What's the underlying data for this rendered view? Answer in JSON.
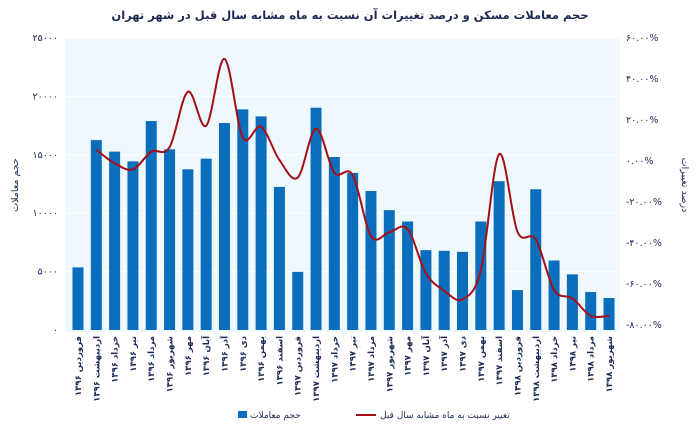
{
  "chart_data": {
    "type": "bar+line",
    "title": "حجم معاملات مسکن و درصد تغییرات آن نسبت به ماه مشابه سال قبل در شهر تهران",
    "ylabel_left": "حجم معاملات",
    "ylabel_right": "درصد تغییرات",
    "ylim_left": [
      0,
      25000
    ],
    "yticks_left": [
      "۰",
      "۵۰۰۰",
      "۱۰۰۰۰",
      "۱۵۰۰۰",
      "۲۰۰۰۰",
      "۲۵۰۰۰"
    ],
    "ylim_right": [
      -80,
      60
    ],
    "yticks_right": [
      "-۸۰.۰۰%",
      "-۶۰.۰۰%",
      "-۴۰.۰۰%",
      "-۲۰.۰۰%",
      "۰.۰۰%",
      "۲۰.۰۰%",
      "۴۰.۰۰%",
      "۶۰.۰۰%"
    ],
    "grid": true,
    "legend_position": "bottom",
    "categories": [
      "فروردین ۱۳۹۶",
      "اردیبهشت ۱۳۹۶",
      "خرداد ۱۳۹۶",
      "تیر ۱۳۹۶",
      "مرداد ۱۳۹۶",
      "شهریور ۱۳۹۶",
      "مهر ۱۳۹۶",
      "آبان ۱۳۹۶",
      "آذر ۱۳۹۶",
      "دی ۱۳۹۶",
      "بهمن ۱۳۹۶",
      "اسفند ۱۳۹۶",
      "فروردین ۱۳۹۷",
      "اردیبهشت ۱۳۹۷",
      "خرداد ۱۳۹۷",
      "تیر ۱۳۹۷",
      "مرداد ۱۳۹۷",
      "شهریور ۱۳۹۷",
      "مهر ۱۳۹۷",
      "آبان ۱۳۹۷",
      "آذر ۱۳۹۷",
      "دی ۱۳۹۷",
      "بهمن ۱۳۹۷",
      "اسفند ۱۳۹۷",
      "فروردین ۱۳۹۸",
      "اردیبهشت ۱۳۹۸",
      "خرداد ۱۳۹۸",
      "تیر ۱۳۹۸",
      "مرداد ۱۳۹۸",
      "شهریور ۱۳۹۸"
    ],
    "series": [
      {
        "name": "حجم معاملات",
        "type": "bar",
        "axis": "left",
        "color": "#0a6ebd",
        "values": [
          5360,
          16260,
          15270,
          14440,
          17890,
          15470,
          13760,
          14670,
          17720,
          18890,
          18290,
          12250,
          4980,
          19030,
          14810,
          13450,
          11900,
          10260,
          9290,
          6840,
          6780,
          6690,
          9290,
          12740,
          3420,
          12050,
          5950,
          4760,
          3250,
          2740
        ]
      },
      {
        "name": "تغییر نسبت به ماه مشابه سال قبل",
        "type": "line",
        "axis": "right",
        "color": "#a50f15",
        "values": [
          null,
          5.4,
          -1.1,
          -4.1,
          4.5,
          6.7,
          33.8,
          17.2,
          49.8,
          11.5,
          16.7,
          0.5,
          -8.1,
          15.8,
          -5.7,
          -6.8,
          -36.6,
          -34.8,
          -33.2,
          -54.8,
          -63.3,
          -67.5,
          -53.2,
          3.3,
          -34.5,
          -38.2,
          -62.9,
          -67.0,
          -75.5,
          -75.5
        ]
      }
    ]
  }
}
